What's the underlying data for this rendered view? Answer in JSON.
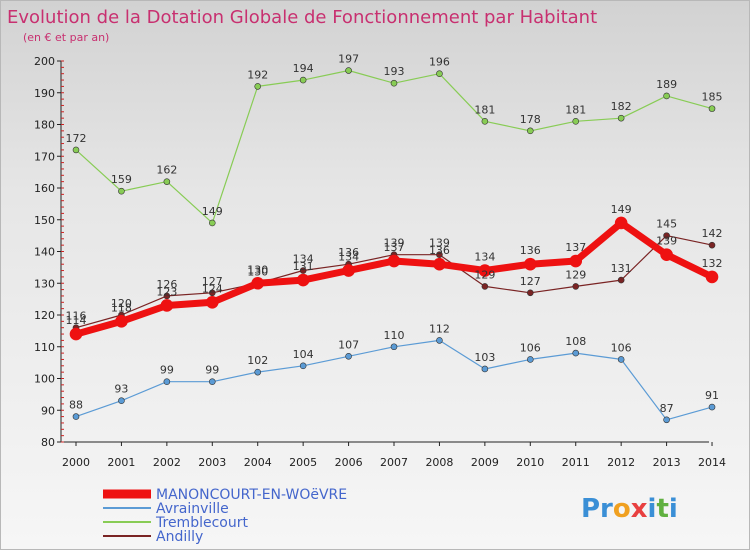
{
  "title": "Evolution de la Dotation Globale de Fonctionnement par Habitant",
  "subtitle": "(en € et par an)",
  "brand": {
    "parts": [
      "Pr",
      "o",
      "x",
      "i",
      "t",
      "i"
    ],
    "colors": [
      "#3a8fd6",
      "#f0a020",
      "#e84040",
      "#3a8fd6",
      "#60b040",
      "#3a8fd6"
    ]
  },
  "chart_data": {
    "type": "line",
    "x": [
      "2000",
      "2001",
      "2002",
      "2003",
      "2004",
      "2005",
      "2006",
      "2007",
      "2008",
      "2009",
      "2010",
      "2011",
      "2012",
      "2013",
      "2014"
    ],
    "yticks": [
      "80",
      "90",
      "100",
      "110",
      "120",
      "130",
      "140",
      "150",
      "160",
      "170",
      "180",
      "190",
      "200"
    ],
    "ylim": [
      80,
      200
    ],
    "grid": false,
    "legend_position": "bottom-left",
    "series": [
      {
        "name": "Andilly",
        "color": "#7a2424",
        "width": 1.2,
        "marker": 3,
        "values": [
          116,
          120,
          126,
          127,
          130,
          134,
          136,
          139,
          139,
          129,
          127,
          129,
          131,
          145,
          142
        ]
      },
      {
        "name": "Tremblecourt",
        "color": "#88cc55",
        "width": 1.2,
        "marker": 3,
        "values": [
          172,
          159,
          162,
          149,
          192,
          194,
          197,
          193,
          196,
          181,
          178,
          181,
          182,
          189,
          185
        ]
      },
      {
        "name": "Avrainville",
        "color": "#5b9bd5",
        "width": 1.2,
        "marker": 3,
        "values": [
          88,
          93,
          99,
          99,
          102,
          104,
          107,
          110,
          112,
          103,
          106,
          108,
          106,
          87,
          91
        ]
      },
      {
        "name": "MANONCOURT-EN-WOëVRE",
        "color": "#ee1111",
        "width": 7,
        "marker": 6,
        "values": [
          114,
          118,
          123,
          124,
          130,
          131,
          134,
          137,
          136,
          134,
          136,
          137,
          149,
          139,
          132
        ]
      }
    ]
  }
}
